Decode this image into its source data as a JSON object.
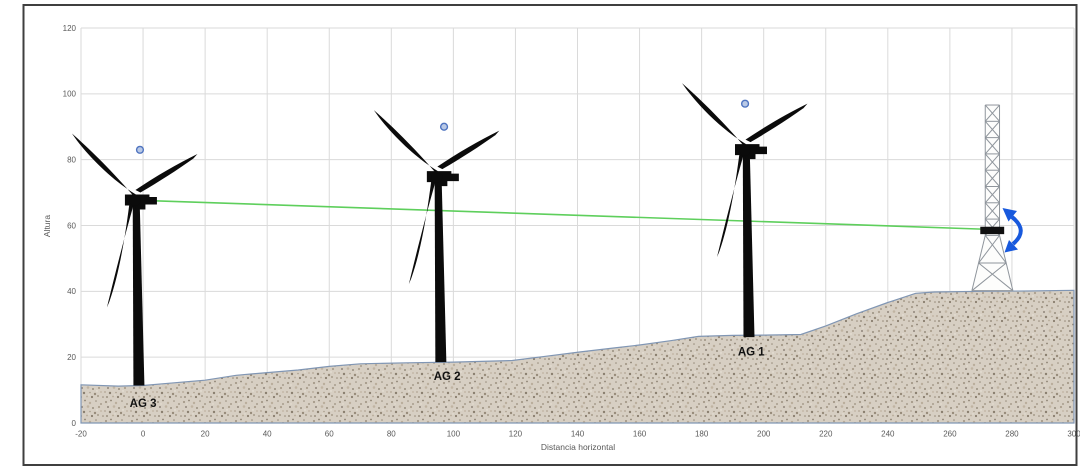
{
  "chart_data": {
    "type": "scatter",
    "title": "",
    "xlabel": "Distancia horizontal",
    "ylabel": "Altura",
    "xlim": [
      -20,
      300
    ],
    "ylim": [
      0,
      120
    ],
    "x_ticks": [
      -20,
      0,
      20,
      40,
      60,
      80,
      100,
      120,
      140,
      160,
      180,
      200,
      220,
      240,
      260,
      280,
      300
    ],
    "y_ticks": [
      0,
      20,
      40,
      60,
      80,
      100,
      120
    ],
    "grid": true,
    "legend": "none",
    "terrain_profile": [
      [
        -20,
        11.6
      ],
      [
        -8,
        11.2
      ],
      [
        0,
        11.4
      ],
      [
        10,
        12.2
      ],
      [
        20,
        13.0
      ],
      [
        30,
        14.5
      ],
      [
        40,
        15.3
      ],
      [
        50,
        16.1
      ],
      [
        60,
        17.2
      ],
      [
        70,
        18.0
      ],
      [
        85,
        18.3
      ],
      [
        100,
        18.5
      ],
      [
        112,
        18.8
      ],
      [
        119,
        19.0
      ],
      [
        130,
        20.3
      ],
      [
        141,
        21.6
      ],
      [
        152,
        22.8
      ],
      [
        160,
        23.7
      ],
      [
        170,
        25.0
      ],
      [
        179,
        26.3
      ],
      [
        190,
        26.6
      ],
      [
        200,
        26.7
      ],
      [
        212,
        26.9
      ],
      [
        220,
        29.5
      ],
      [
        230,
        33.2
      ],
      [
        240,
        36.6
      ],
      [
        249,
        39.4
      ],
      [
        255,
        39.8
      ],
      [
        270,
        40.0
      ],
      [
        285,
        40.1
      ],
      [
        300,
        40.3
      ]
    ],
    "turbines": [
      {
        "label": "AG 3",
        "x": 0,
        "ground_y": 11.4,
        "hub_x": -2.3,
        "hub_y": 67.6,
        "label_x": 0,
        "label_y": 4.8
      },
      {
        "label": "AG 2",
        "x": 97,
        "ground_y": 18.5,
        "hub_x": 95.0,
        "hub_y": 74.7,
        "label_x": 98,
        "label_y": 13.0
      },
      {
        "label": "AG 1",
        "x": 194,
        "ground_y": 26.1,
        "hub_x": 194.3,
        "hub_y": 82.9,
        "label_x": 196,
        "label_y": 20.5
      }
    ],
    "scatter_points": [
      [
        -1,
        83
      ],
      [
        97,
        90
      ],
      [
        194,
        97
      ]
    ],
    "sight_line": {
      "x1": -2.3,
      "y1": 67.7,
      "x2": 270.3,
      "y2": 58.9
    },
    "met_mast": {
      "x": 273.7,
      "base_y": 40.2,
      "top_y": 96.6,
      "flare_top_y": 57.0,
      "column_half_width": 2.3,
      "base_half_width": 6.6,
      "sensor": {
        "y_center": 58.5,
        "x_from": 269.8,
        "x_to": 277.5,
        "height": 2.2
      }
    },
    "colors": {
      "grid": "#dadada",
      "tick_text": "#595959",
      "axis_title_text": "#595959",
      "terrain_fill": "#d7cfc3",
      "terrain_stroke": "#8096b4",
      "sight_line": "#5ecf5c",
      "point_fill": "#b9c9e6",
      "point_stroke": "#4f74c0",
      "turbine": "#0b0b0b",
      "turbine_label": "#111111",
      "mast_stroke": "#8f959c",
      "sensor_bar": "#101010",
      "arrow": "#1859dd",
      "frame_border": "#3f3f3f",
      "background": "#ffffff"
    }
  }
}
